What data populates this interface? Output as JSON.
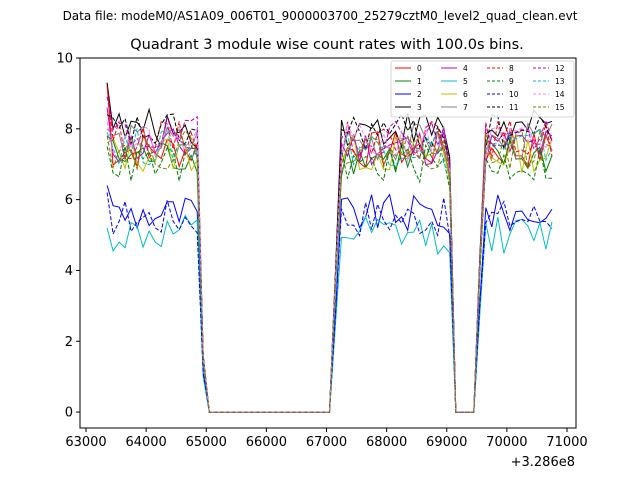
{
  "chart_data": {
    "type": "line",
    "suptitle": "Data file: modeM0/AS1A09_006T01_9000003700_25279cztM0_level2_quad_clean.evt",
    "title": "Quadrant 3 module wise count rates with 100.0s bins.",
    "xlabel": "",
    "ylabel": "",
    "x_offset_label": "+3.286e8",
    "xlim": [
      62900,
      71150
    ],
    "ylim": [
      -0.45,
      10.0
    ],
    "x_ticks": [
      63000,
      64000,
      65000,
      66000,
      67000,
      68000,
      69000,
      70000,
      71000
    ],
    "x_tick_labels": [
      "63000",
      "64000",
      "65000",
      "66000",
      "67000",
      "68000",
      "69000",
      "70000",
      "71000"
    ],
    "y_ticks": [
      0,
      2,
      4,
      6,
      8,
      10
    ],
    "y_tick_labels": [
      "0",
      "2",
      "4",
      "6",
      "8",
      "10"
    ],
    "grid": false,
    "legend_position": "top-right",
    "legend_columns": 4,
    "bin_size_s": 100,
    "segments": [
      {
        "start": 63350,
        "end": 64850,
        "off_before": false
      },
      {
        "start": 65050,
        "end": 67050,
        "off_before": false
      },
      {
        "start": 67150,
        "end": 69050,
        "off_before": false
      },
      {
        "start": 69150,
        "end": 69450,
        "off_before": false
      },
      {
        "start": 69550,
        "end": 70750,
        "off_before": false
      }
    ],
    "series": [
      {
        "name": "0",
        "color": "#ff0000",
        "dash": "solid",
        "level": 7.4,
        "peak": 9.3
      },
      {
        "name": "1",
        "color": "#008000",
        "dash": "solid",
        "level": 7.2,
        "peak": 7.8
      },
      {
        "name": "2",
        "color": "#0000ff",
        "dash": "solid",
        "level": 5.6,
        "peak": 6.4
      },
      {
        "name": "3",
        "color": "#000000",
        "dash": "solid",
        "level": 8.0,
        "peak": 9.3
      },
      {
        "name": "4",
        "color": "#c000c0",
        "dash": "solid",
        "level": 7.5,
        "peak": 8.6
      },
      {
        "name": "5",
        "color": "#00bfbf",
        "dash": "solid",
        "level": 5.0,
        "peak": 5.2
      },
      {
        "name": "6",
        "color": "#bfbf00",
        "dash": "solid",
        "level": 7.3,
        "peak": 7.6
      },
      {
        "name": "7",
        "color": "#808080",
        "dash": "solid",
        "level": 7.6,
        "peak": 8.0
      },
      {
        "name": "8",
        "color": "#ff0000",
        "dash": "dashed",
        "level": 7.7,
        "peak": 9.2
      },
      {
        "name": "9",
        "color": "#008000",
        "dash": "dashed",
        "level": 7.0,
        "peak": 7.5
      },
      {
        "name": "10",
        "color": "#0000ff",
        "dash": "dashed",
        "level": 5.5,
        "peak": 6.2
      },
      {
        "name": "11",
        "color": "#000000",
        "dash": "dashed",
        "level": 7.9,
        "peak": 8.4
      },
      {
        "name": "12",
        "color": "#c000c0",
        "dash": "dashed",
        "level": 7.8,
        "peak": 8.9
      },
      {
        "name": "13",
        "color": "#00bfbf",
        "dash": "dashed",
        "level": 7.5,
        "peak": 7.9
      },
      {
        "name": "14",
        "color": "#ff80ff",
        "dash": "dashed",
        "level": 7.6,
        "peak": 8.2
      },
      {
        "name": "15",
        "color": "#808000",
        "dash": "dashed",
        "level": 7.4,
        "peak": 7.8
      }
    ]
  }
}
